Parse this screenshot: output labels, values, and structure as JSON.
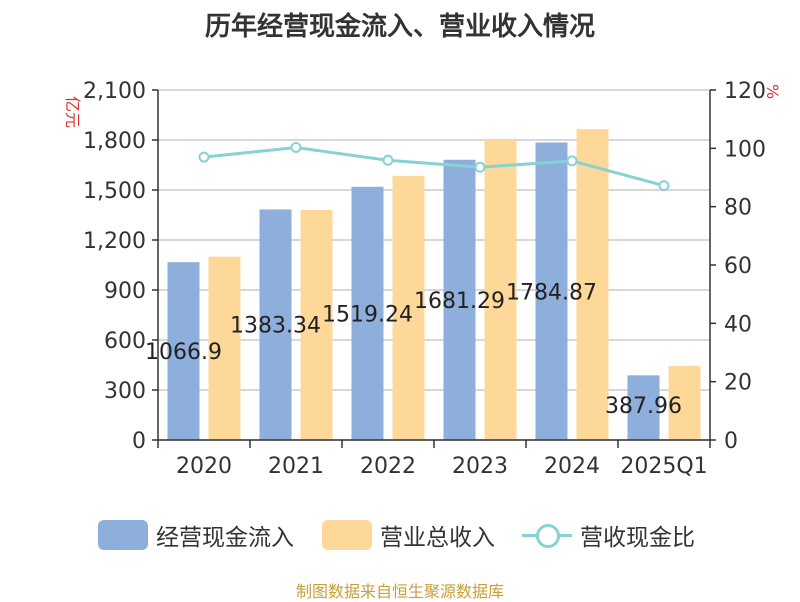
{
  "chart_data": {
    "type": "bar",
    "title": "历年经营现金流入、营业收入情况",
    "left_unit": "亿元",
    "right_unit": "%",
    "categories": [
      "2020",
      "2021",
      "2022",
      "2023",
      "2024",
      "2025Q1"
    ],
    "series": [
      {
        "name": "经营现金流入",
        "type": "bar",
        "axis": "left",
        "color": "#8eaedb",
        "values": [
          1066.9,
          1383.34,
          1519.24,
          1681.29,
          1784.87,
          387.96
        ],
        "labels": [
          "1066.9",
          "1383.34",
          "1519.24",
          "1681.29",
          "1784.87",
          "387.96"
        ]
      },
      {
        "name": "营业总收入",
        "type": "bar",
        "axis": "left",
        "color": "#fdd899",
        "values": [
          1100,
          1380,
          1585,
          1800,
          1865,
          445
        ]
      },
      {
        "name": "营收现金比",
        "type": "line",
        "axis": "right",
        "color": "#87d2d4",
        "values": [
          97,
          100.3,
          95.9,
          93.5,
          95.7,
          87.2
        ]
      }
    ],
    "y_left": {
      "min": 0,
      "max": 2100,
      "ticks": [
        0,
        300,
        600,
        900,
        1200,
        1500,
        1800,
        2100
      ],
      "tick_labels": [
        "0",
        "300",
        "600",
        "900",
        "1,200",
        "1,500",
        "1,800",
        "2,100"
      ]
    },
    "y_right": {
      "min": 0,
      "max": 120,
      "ticks": [
        0,
        20,
        40,
        60,
        80,
        100,
        120
      ],
      "tick_labels": [
        "0",
        "20",
        "40",
        "60",
        "80",
        "100",
        "120"
      ]
    },
    "grid": true,
    "legend_position": "bottom"
  },
  "source_note": "制图数据来自恒生聚源数据库"
}
